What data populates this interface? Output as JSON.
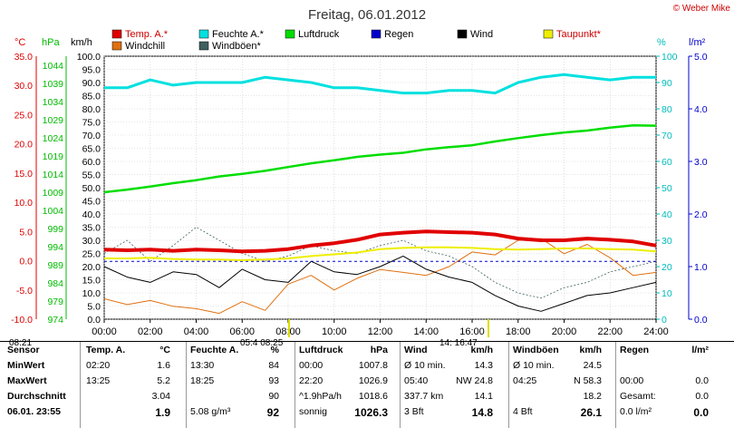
{
  "title": "Freitag, 06.01.2012",
  "copyright": "© Weber Mike",
  "axis_titles": {
    "temp": "°C",
    "press": "hPa",
    "wind": "km/h",
    "hum": "%",
    "rain": "l/m²"
  },
  "legend": [
    {
      "label": "Temp. A.*",
      "color": "#e00000"
    },
    {
      "label": "Feuchte A.*",
      "color": "#00e0e0"
    },
    {
      "label": "Luftdruck",
      "color": "#00dd00"
    },
    {
      "label": "Regen",
      "color": "#0000cc"
    },
    {
      "label": "Wind",
      "color": "#000000"
    },
    {
      "label": "Taupunkt*",
      "color": "#eeee00"
    },
    {
      "label": "Windchill",
      "color": "#e07010"
    },
    {
      "label": "Windböen*",
      "color": "#406060"
    }
  ],
  "colors": {
    "temp": "#e00000",
    "hum": "#00e0e0",
    "press": "#00dd00",
    "rain": "#0000cc",
    "wind": "#000000",
    "dew": "#eeee00",
    "chill": "#e07010",
    "gust": "#406060"
  },
  "chart_data": {
    "type": "line",
    "x_ticks": [
      "00:00",
      "02:00",
      "04:00",
      "06:00",
      "08:00",
      "10:00",
      "12:00",
      "14:00",
      "16:00",
      "18:00",
      "20:00",
      "22:00",
      "24:00"
    ],
    "temp_ticks": [
      "35.0",
      "30.0",
      "25.0",
      "20.0",
      "15.0",
      "10.0",
      "5.0",
      "0.0",
      "-5.0",
      "-10.0"
    ],
    "press_ticks": [
      "1044",
      "1039",
      "1034",
      "1029",
      "1024",
      "1019",
      "1014",
      "1009",
      "1004",
      "999",
      "994",
      "989",
      "984",
      "979",
      "974"
    ],
    "wind_ticks": [
      "100.0",
      "95.0",
      "90.0",
      "85.0",
      "80.0",
      "75.0",
      "70.0",
      "65.0",
      "60.0",
      "55.0",
      "50.0",
      "45.0",
      "40.0",
      "35.0",
      "30.0",
      "25.0",
      "20.0",
      "15.0",
      "10.0",
      "5.0",
      "0.0"
    ],
    "hum_ticks": [
      "100",
      "90",
      "80",
      "70",
      "60",
      "50",
      "40",
      "30",
      "20",
      "10",
      "0"
    ],
    "rain_ticks": [
      "5.0",
      "4.0",
      "3.0",
      "2.0",
      "1.0",
      "0.0"
    ],
    "series": [
      {
        "name": "Temp. A.*",
        "axis": "temp",
        "x": [
          0,
          1,
          2,
          3,
          4,
          5,
          6,
          7,
          8,
          9,
          10,
          11,
          12,
          13,
          14,
          15,
          16,
          17,
          18,
          19,
          20,
          21,
          22,
          23,
          24
        ],
        "y": [
          1.9,
          1.8,
          1.9,
          1.7,
          1.9,
          1.8,
          1.6,
          1.7,
          2.0,
          2.6,
          3.0,
          3.6,
          4.5,
          4.8,
          5.0,
          4.9,
          4.8,
          4.5,
          3.8,
          3.5,
          3.5,
          3.8,
          3.6,
          3.3,
          2.6
        ]
      },
      {
        "name": "Feuchte A.*",
        "axis": "hum",
        "x": [
          0,
          1,
          2,
          3,
          4,
          5,
          6,
          7,
          8,
          9,
          10,
          11,
          12,
          13,
          14,
          15,
          16,
          17,
          18,
          19,
          20,
          21,
          22,
          23,
          24
        ],
        "y": [
          88,
          88,
          91,
          89,
          90,
          90,
          90,
          92,
          91,
          90,
          88,
          88,
          87,
          86,
          86,
          87,
          87,
          86,
          90,
          92,
          93,
          92,
          91,
          92,
          92
        ]
      },
      {
        "name": "Luftdruck",
        "axis": "press",
        "x": [
          0,
          1,
          2,
          3,
          4,
          5,
          6,
          7,
          8,
          9,
          10,
          11,
          12,
          13,
          14,
          15,
          16,
          17,
          18,
          19,
          20,
          21,
          22,
          23,
          24
        ],
        "y": [
          1007.8,
          1008.5,
          1009.3,
          1010.2,
          1011.0,
          1012.0,
          1012.7,
          1013.5,
          1014.5,
          1015.5,
          1016.3,
          1017.2,
          1017.8,
          1018.3,
          1019.2,
          1019.8,
          1020.3,
          1021.3,
          1022.2,
          1023.0,
          1023.7,
          1024.2,
          1025.0,
          1025.6,
          1025.5
        ]
      },
      {
        "name": "Regen",
        "axis": "rain",
        "x": [
          0,
          24
        ],
        "y": [
          1.1,
          1.1
        ]
      },
      {
        "name": "Wind",
        "axis": "wind",
        "x": [
          0,
          1,
          2,
          3,
          4,
          5,
          6,
          7,
          8,
          9,
          10,
          11,
          12,
          13,
          14,
          15,
          16,
          17,
          18,
          19,
          20,
          21,
          22,
          23,
          24
        ],
        "y": [
          20,
          16,
          14,
          18,
          17,
          12,
          19,
          15,
          14,
          22,
          18,
          17,
          20,
          24,
          19,
          16,
          14,
          9,
          5,
          3,
          6,
          9,
          10,
          12,
          14
        ]
      },
      {
        "name": "Taupunkt*",
        "axis": "temp",
        "x": [
          0,
          1,
          2,
          3,
          4,
          5,
          6,
          7,
          8,
          9,
          10,
          11,
          12,
          13,
          14,
          15,
          16,
          17,
          18,
          19,
          20,
          21,
          22,
          23,
          24
        ],
        "y": [
          0.4,
          0.4,
          0.5,
          0.3,
          0.2,
          0.2,
          0.1,
          0.2,
          0.4,
          0.8,
          1.1,
          1.4,
          2.0,
          2.2,
          2.3,
          2.3,
          2.2,
          2.0,
          1.9,
          2.0,
          2.1,
          2.1,
          2.0,
          1.9,
          1.6
        ]
      },
      {
        "name": "Windchill",
        "axis": "temp",
        "x": [
          0,
          1,
          2,
          3,
          4,
          5,
          6,
          7,
          8,
          9,
          10,
          11,
          12,
          13,
          14,
          15,
          16,
          17,
          18,
          19,
          20,
          21,
          22,
          23,
          24
        ],
        "y": [
          -6.5,
          -7.5,
          -6.8,
          -7.8,
          -8.2,
          -9.0,
          -7.0,
          -8.5,
          -4.0,
          -2.5,
          -5.0,
          -3.0,
          -1.5,
          -2.0,
          -2.5,
          -1.0,
          1.5,
          1.0,
          3.5,
          3.8,
          1.2,
          2.8,
          0.5,
          -2.5,
          -2.0
        ]
      },
      {
        "name": "Windböen*",
        "axis": "wind",
        "x": [
          0,
          1,
          2,
          3,
          4,
          5,
          6,
          7,
          8,
          9,
          10,
          11,
          12,
          13,
          14,
          15,
          16,
          17,
          18,
          19,
          20,
          21,
          22,
          23,
          24
        ],
        "y": [
          25,
          30,
          22,
          28,
          35,
          30,
          25,
          22,
          24,
          28,
          26,
          25,
          28,
          30,
          26,
          24,
          20,
          14,
          10,
          8,
          12,
          14,
          18,
          20,
          22
        ]
      }
    ]
  },
  "time_markers": {
    "left": "08:21",
    "sunrise": "05:4 08:25",
    "sunset": "14: 16:47"
  },
  "table": {
    "headers": [
      "Sensor",
      "Temp. A.",
      "°C",
      "Feuchte A.",
      "%",
      "Luftdruck",
      "hPa",
      "Wind",
      "km/h",
      "Windböen",
      "km/h",
      "Regen",
      "l/m²"
    ],
    "row_labels": [
      "MinWert",
      "MaxWert",
      "Durchschnitt",
      "06.01. 23:55"
    ],
    "temp": [
      [
        "02:20",
        "1.6"
      ],
      [
        "13:25",
        "5.2"
      ],
      [
        "",
        "3.04"
      ],
      [
        "",
        "1.9"
      ]
    ],
    "hum": [
      [
        "13:30",
        "84"
      ],
      [
        "18:25",
        "93"
      ],
      [
        "",
        "90"
      ],
      [
        "5.08 g/m³",
        "92"
      ]
    ],
    "press": [
      [
        "00:00",
        "1007.8"
      ],
      [
        "22:20",
        "1026.9"
      ],
      [
        "^1.9hPa/h",
        "1018.6"
      ],
      [
        "sonnig",
        "1026.3"
      ]
    ],
    "wind": [
      [
        "Ø 10 min.",
        "14.3"
      ],
      [
        "05:40",
        "NW 24.8"
      ],
      [
        "337.7 km",
        "14.1"
      ],
      [
        "3 Bft",
        "14.8"
      ]
    ],
    "gust": [
      [
        "Ø 10 min.",
        "24.5"
      ],
      [
        "04:25",
        "N 58.3"
      ],
      [
        "",
        "18.2"
      ],
      [
        "4 Bft",
        "26.1"
      ]
    ],
    "rain": [
      [
        "",
        ""
      ],
      [
        "00:00",
        "0.0"
      ],
      [
        "Gesamt:",
        "0.0"
      ],
      [
        "0.0 l/m²",
        "0.0"
      ]
    ]
  }
}
